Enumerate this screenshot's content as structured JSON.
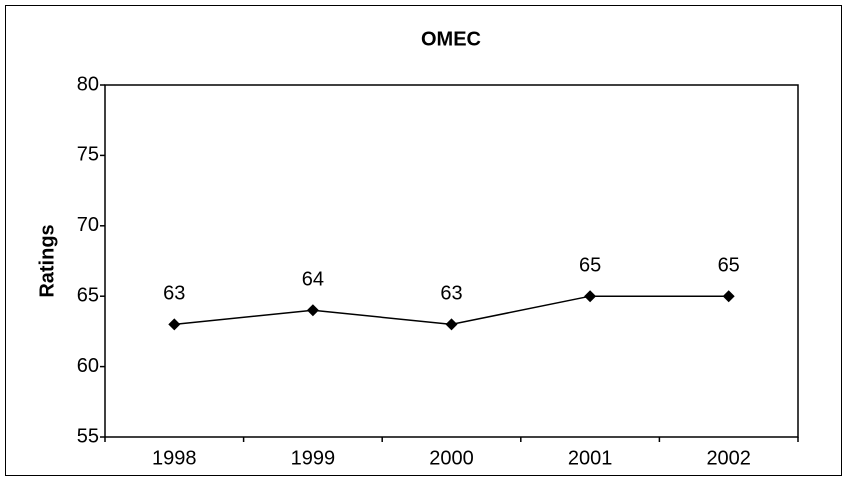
{
  "chart_data": {
    "type": "line",
    "title": "OMEC",
    "y_label": "Ratings",
    "categories": [
      "1998",
      "1999",
      "2000",
      "2001",
      "2002"
    ],
    "values": [
      63,
      64,
      63,
      65,
      65
    ],
    "color": "#000000",
    "ylim": [
      55,
      80
    ],
    "yticks": [
      55,
      60,
      65,
      70,
      75,
      80
    ],
    "grid": false,
    "data_labels": true
  }
}
